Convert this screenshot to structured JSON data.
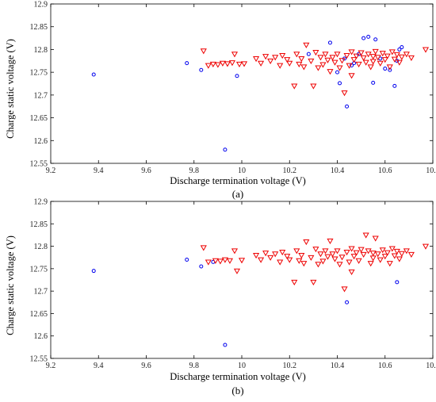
{
  "chart_data": [
    {
      "type": "scatter",
      "panel_label": "(a)",
      "xlabel": "Discharge termination voltage (V)",
      "ylabel": "Charge static voltage (V)",
      "xlim": [
        9.2,
        10.8
      ],
      "ylim": [
        12.55,
        12.9
      ],
      "xticks": [
        "9.2",
        "9.4",
        "9.6",
        "9.8",
        "10",
        "10.2",
        "10.4",
        "10.6",
        "10.8"
      ],
      "yticks": [
        "12.55",
        "12.6",
        "12.65",
        "12.7",
        "12.75",
        "12.8",
        "12.85",
        "12.9"
      ],
      "grid": false,
      "legend": "none",
      "series": [
        {
          "marker": "circle",
          "color": "#0000ee",
          "points": [
            [
              9.38,
              12.745
            ],
            [
              9.77,
              12.77
            ],
            [
              9.83,
              12.755
            ],
            [
              9.93,
              12.58
            ],
            [
              9.98,
              12.742
            ],
            [
              10.28,
              12.79
            ],
            [
              10.37,
              12.815
            ],
            [
              10.4,
              12.75
            ],
            [
              10.41,
              12.726
            ],
            [
              10.43,
              12.78
            ],
            [
              10.44,
              12.675
            ],
            [
              10.46,
              12.765
            ],
            [
              10.47,
              12.77
            ],
            [
              10.49,
              12.79
            ],
            [
              10.51,
              12.825
            ],
            [
              10.53,
              12.828
            ],
            [
              10.55,
              12.727
            ],
            [
              10.56,
              12.822
            ],
            [
              10.58,
              12.78
            ],
            [
              10.6,
              12.758
            ],
            [
              10.62,
              12.755
            ],
            [
              10.64,
              12.72
            ],
            [
              10.65,
              12.775
            ],
            [
              10.66,
              12.8
            ],
            [
              10.67,
              12.805
            ]
          ]
        },
        {
          "marker": "triangle-down",
          "color": "#ee0000",
          "points": [
            [
              9.84,
              12.797
            ],
            [
              9.86,
              12.765
            ],
            [
              9.88,
              12.768
            ],
            [
              9.9,
              12.767
            ],
            [
              9.92,
              12.77
            ],
            [
              9.94,
              12.769
            ],
            [
              9.96,
              12.771
            ],
            [
              9.97,
              12.79
            ],
            [
              9.99,
              12.768
            ],
            [
              10.01,
              12.769
            ],
            [
              10.06,
              12.78
            ],
            [
              10.08,
              12.77
            ],
            [
              10.1,
              12.785
            ],
            [
              10.12,
              12.775
            ],
            [
              10.14,
              12.783
            ],
            [
              10.16,
              12.765
            ],
            [
              10.17,
              12.787
            ],
            [
              10.19,
              12.778
            ],
            [
              10.2,
              12.77
            ],
            [
              10.22,
              12.72
            ],
            [
              10.23,
              12.79
            ],
            [
              10.24,
              12.768
            ],
            [
              10.25,
              12.78
            ],
            [
              10.26,
              12.762
            ],
            [
              10.27,
              12.81
            ],
            [
              10.29,
              12.775
            ],
            [
              10.3,
              12.72
            ],
            [
              10.31,
              12.794
            ],
            [
              10.32,
              12.76
            ],
            [
              10.33,
              12.783
            ],
            [
              10.34,
              12.767
            ],
            [
              10.35,
              12.79
            ],
            [
              10.36,
              12.777
            ],
            [
              10.37,
              12.752
            ],
            [
              10.38,
              12.783
            ],
            [
              10.39,
              12.772
            ],
            [
              10.4,
              12.79
            ],
            [
              10.41,
              12.76
            ],
            [
              10.42,
              12.776
            ],
            [
              10.43,
              12.705
            ],
            [
              10.44,
              12.787
            ],
            [
              10.45,
              12.765
            ],
            [
              10.46,
              12.795
            ],
            [
              10.46,
              12.743
            ],
            [
              10.47,
              12.778
            ],
            [
              10.48,
              12.786
            ],
            [
              10.49,
              12.768
            ],
            [
              10.5,
              12.793
            ],
            [
              10.51,
              12.782
            ],
            [
              10.52,
              12.772
            ],
            [
              10.53,
              12.79
            ],
            [
              10.54,
              12.762
            ],
            [
              10.55,
              12.785
            ],
            [
              10.55,
              12.774
            ],
            [
              10.56,
              12.796
            ],
            [
              10.57,
              12.783
            ],
            [
              10.58,
              12.77
            ],
            [
              10.59,
              12.792
            ],
            [
              10.6,
              12.778
            ],
            [
              10.61,
              12.786
            ],
            [
              10.62,
              12.762
            ],
            [
              10.63,
              12.795
            ],
            [
              10.64,
              12.779
            ],
            [
              10.65,
              12.789
            ],
            [
              10.66,
              12.772
            ],
            [
              10.67,
              12.784
            ],
            [
              10.69,
              12.79
            ],
            [
              10.71,
              12.782
            ],
            [
              10.77,
              12.8
            ]
          ]
        }
      ]
    },
    {
      "type": "scatter",
      "panel_label": "(b)",
      "xlabel": "Discharge termination voltage (V)",
      "ylabel": "Charge static voltage (V)",
      "xlim": [
        9.2,
        10.8
      ],
      "ylim": [
        12.55,
        12.9
      ],
      "xticks": [
        "9.2",
        "9.4",
        "9.6",
        "9.8",
        "10",
        "10.2",
        "10.4",
        "10.6",
        "10.8"
      ],
      "yticks": [
        "12.55",
        "12.6",
        "12.65",
        "12.7",
        "12.75",
        "12.8",
        "12.85",
        "12.9"
      ],
      "grid": false,
      "legend": "none",
      "series": [
        {
          "marker": "circle",
          "color": "#0000ee",
          "points": [
            [
              9.38,
              12.745
            ],
            [
              9.77,
              12.77
            ],
            [
              9.83,
              12.755
            ],
            [
              9.88,
              12.765
            ],
            [
              9.93,
              12.58
            ],
            [
              10.44,
              12.675
            ],
            [
              10.65,
              12.72
            ]
          ]
        },
        {
          "marker": "triangle-down",
          "color": "#ee0000",
          "points": [
            [
              9.84,
              12.797
            ],
            [
              9.86,
              12.765
            ],
            [
              9.89,
              12.768
            ],
            [
              9.91,
              12.767
            ],
            [
              9.93,
              12.77
            ],
            [
              9.95,
              12.768
            ],
            [
              9.97,
              12.79
            ],
            [
              9.98,
              12.745
            ],
            [
              10.0,
              12.769
            ],
            [
              10.06,
              12.78
            ],
            [
              10.08,
              12.77
            ],
            [
              10.1,
              12.785
            ],
            [
              10.12,
              12.775
            ],
            [
              10.14,
              12.783
            ],
            [
              10.16,
              12.765
            ],
            [
              10.17,
              12.787
            ],
            [
              10.19,
              12.778
            ],
            [
              10.2,
              12.77
            ],
            [
              10.22,
              12.72
            ],
            [
              10.23,
              12.79
            ],
            [
              10.24,
              12.768
            ],
            [
              10.25,
              12.78
            ],
            [
              10.26,
              12.762
            ],
            [
              10.27,
              12.81
            ],
            [
              10.29,
              12.775
            ],
            [
              10.3,
              12.72
            ],
            [
              10.31,
              12.794
            ],
            [
              10.32,
              12.76
            ],
            [
              10.33,
              12.783
            ],
            [
              10.34,
              12.767
            ],
            [
              10.35,
              12.79
            ],
            [
              10.36,
              12.777
            ],
            [
              10.37,
              12.812
            ],
            [
              10.38,
              12.783
            ],
            [
              10.39,
              12.772
            ],
            [
              10.4,
              12.79
            ],
            [
              10.41,
              12.76
            ],
            [
              10.42,
              12.776
            ],
            [
              10.43,
              12.705
            ],
            [
              10.44,
              12.787
            ],
            [
              10.45,
              12.765
            ],
            [
              10.46,
              12.795
            ],
            [
              10.46,
              12.743
            ],
            [
              10.47,
              12.778
            ],
            [
              10.48,
              12.786
            ],
            [
              10.49,
              12.768
            ],
            [
              10.5,
              12.793
            ],
            [
              10.51,
              12.782
            ],
            [
              10.52,
              12.825
            ],
            [
              10.53,
              12.79
            ],
            [
              10.54,
              12.762
            ],
            [
              10.55,
              12.785
            ],
            [
              10.55,
              12.774
            ],
            [
              10.56,
              12.818
            ],
            [
              10.57,
              12.783
            ],
            [
              10.58,
              12.77
            ],
            [
              10.59,
              12.792
            ],
            [
              10.6,
              12.778
            ],
            [
              10.61,
              12.786
            ],
            [
              10.62,
              12.762
            ],
            [
              10.63,
              12.795
            ],
            [
              10.64,
              12.779
            ],
            [
              10.65,
              12.789
            ],
            [
              10.66,
              12.772
            ],
            [
              10.67,
              12.784
            ],
            [
              10.69,
              12.79
            ],
            [
              10.71,
              12.782
            ],
            [
              10.77,
              12.8
            ]
          ]
        }
      ]
    }
  ]
}
